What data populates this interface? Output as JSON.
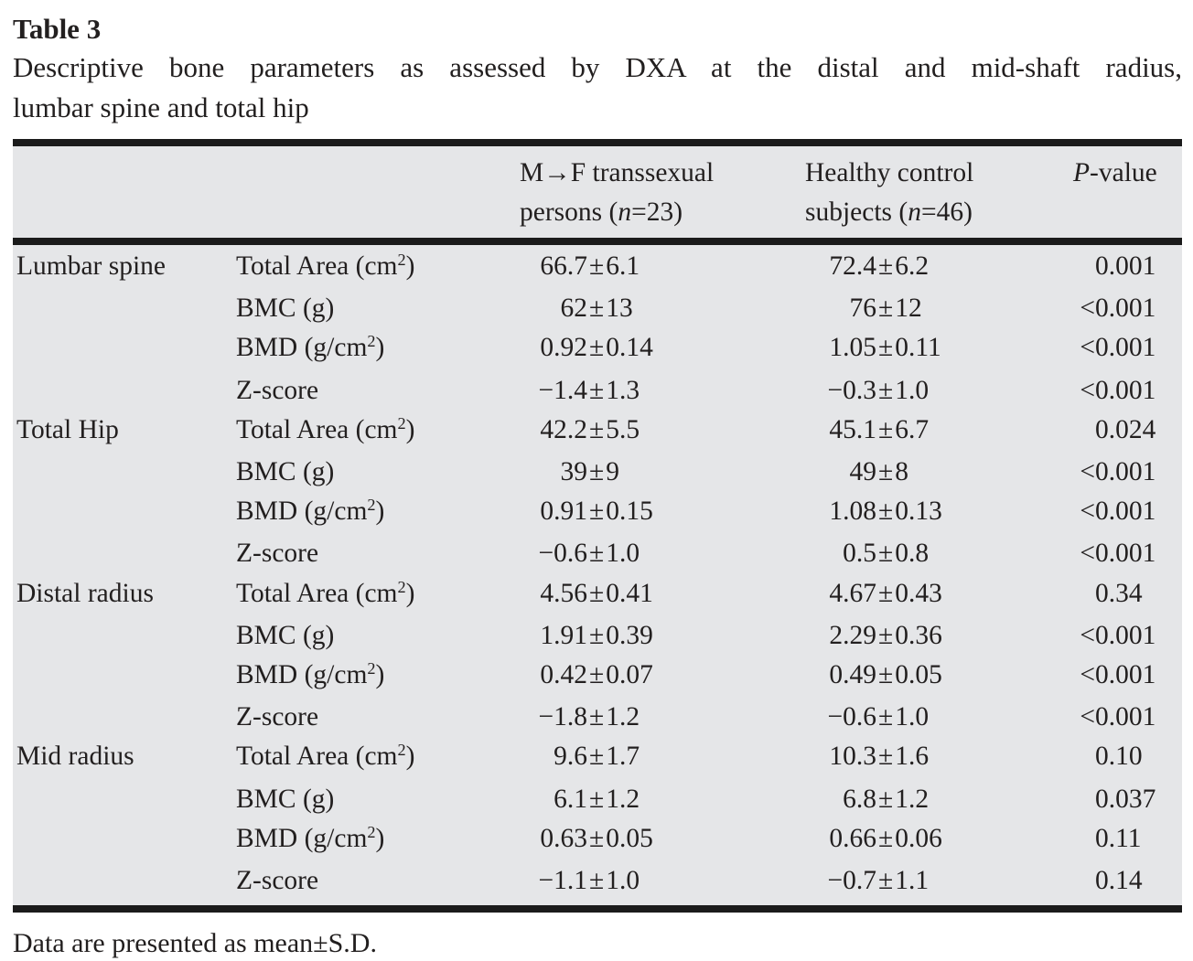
{
  "table_label": "Table 3",
  "caption_line1": "Descriptive bone parameters as assessed by DXA at the distal and mid-shaft radius,",
  "caption_line2": "lumbar spine and total hip",
  "footnote": "Data are presented as mean±S.D.",
  "pm_symbol": "±",
  "colors": {
    "table_bg": "#e5e6e8",
    "rule": "#1b1b1b",
    "text": "#221f1f",
    "page_bg": "#ffffff"
  },
  "header": {
    "group_col": "",
    "param_col": "",
    "col3_line1": "M→F transsexual",
    "col3_line2_pre": "persons (",
    "col3_line2_italic": "n",
    "col3_line2_post": "=23)",
    "col4_line1": "Healthy control",
    "col4_line2_pre": "subjects (",
    "col4_line2_italic": "n",
    "col4_line2_post": "=46)",
    "col5_italic": "P",
    "col5_post": "-value"
  },
  "groups": [
    {
      "name": "Lumbar spine",
      "rows": [
        {
          "param": {
            "pre": "Total Area (cm",
            "sup": "2",
            "post": ")"
          },
          "g1": {
            "mean": "66.7",
            "sd": "6.1"
          },
          "g2": {
            "mean": "72.4",
            "sd": "6.2"
          },
          "p": {
            "prefix": "",
            "value": "0.001"
          }
        },
        {
          "param": {
            "pre": "BMC (g)",
            "sup": "",
            "post": ""
          },
          "g1": {
            "mean": "62",
            "sd": "13"
          },
          "g2": {
            "mean": "76",
            "sd": "12"
          },
          "p": {
            "prefix": "<",
            "value": "0.001"
          }
        },
        {
          "param": {
            "pre": "BMD (g/cm",
            "sup": "2",
            "post": ")"
          },
          "g1": {
            "mean": "0.92",
            "sd": "0.14"
          },
          "g2": {
            "mean": "1.05",
            "sd": "0.11"
          },
          "p": {
            "prefix": "<",
            "value": "0.001"
          }
        },
        {
          "param": {
            "pre": "Z-score",
            "sup": "",
            "post": ""
          },
          "g1": {
            "mean": "−1.4",
            "sd": "1.3"
          },
          "g2": {
            "mean": "−0.3",
            "sd": "1.0"
          },
          "p": {
            "prefix": "<",
            "value": "0.001"
          }
        }
      ]
    },
    {
      "name": "Total Hip",
      "rows": [
        {
          "param": {
            "pre": "Total Area (cm",
            "sup": "2",
            "post": ")"
          },
          "g1": {
            "mean": "42.2",
            "sd": "5.5"
          },
          "g2": {
            "mean": "45.1",
            "sd": "6.7"
          },
          "p": {
            "prefix": "",
            "value": "0.024"
          }
        },
        {
          "param": {
            "pre": "BMC (g)",
            "sup": "",
            "post": ""
          },
          "g1": {
            "mean": "39",
            "sd": "9"
          },
          "g2": {
            "mean": "49",
            "sd": "8"
          },
          "p": {
            "prefix": "<",
            "value": "0.001"
          }
        },
        {
          "param": {
            "pre": "BMD (g/cm",
            "sup": "2",
            "post": ")"
          },
          "g1": {
            "mean": "0.91",
            "sd": "0.15"
          },
          "g2": {
            "mean": "1.08",
            "sd": "0.13"
          },
          "p": {
            "prefix": "<",
            "value": "0.001"
          }
        },
        {
          "param": {
            "pre": "Z-score",
            "sup": "",
            "post": ""
          },
          "g1": {
            "mean": "−0.6",
            "sd": "1.0"
          },
          "g2": {
            "mean": "0.5",
            "sd": "0.8"
          },
          "p": {
            "prefix": "<",
            "value": "0.001"
          }
        }
      ]
    },
    {
      "name": "Distal radius",
      "rows": [
        {
          "param": {
            "pre": "Total Area (cm",
            "sup": "2",
            "post": ")"
          },
          "g1": {
            "mean": "4.56",
            "sd": "0.41"
          },
          "g2": {
            "mean": "4.67",
            "sd": "0.43"
          },
          "p": {
            "prefix": "",
            "value": "0.34"
          }
        },
        {
          "param": {
            "pre": "BMC (g)",
            "sup": "",
            "post": ""
          },
          "g1": {
            "mean": "1.91",
            "sd": "0.39"
          },
          "g2": {
            "mean": "2.29",
            "sd": "0.36"
          },
          "p": {
            "prefix": "<",
            "value": "0.001"
          }
        },
        {
          "param": {
            "pre": "BMD (g/cm",
            "sup": "2",
            "post": ")"
          },
          "g1": {
            "mean": "0.42",
            "sd": "0.07"
          },
          "g2": {
            "mean": "0.49",
            "sd": "0.05"
          },
          "p": {
            "prefix": "<",
            "value": "0.001"
          }
        },
        {
          "param": {
            "pre": "Z-score",
            "sup": "",
            "post": ""
          },
          "g1": {
            "mean": "−1.8",
            "sd": "1.2"
          },
          "g2": {
            "mean": "−0.6",
            "sd": "1.0"
          },
          "p": {
            "prefix": "<",
            "value": "0.001"
          }
        }
      ]
    },
    {
      "name": "Mid radius",
      "rows": [
        {
          "param": {
            "pre": "Total Area (cm",
            "sup": "2",
            "post": ")"
          },
          "g1": {
            "mean": "9.6",
            "sd": "1.7"
          },
          "g2": {
            "mean": "10.3",
            "sd": "1.6"
          },
          "p": {
            "prefix": "",
            "value": "0.10"
          }
        },
        {
          "param": {
            "pre": "BMC (g)",
            "sup": "",
            "post": ""
          },
          "g1": {
            "mean": "6.1",
            "sd": "1.2"
          },
          "g2": {
            "mean": "6.8",
            "sd": "1.2"
          },
          "p": {
            "prefix": "",
            "value": "0.037"
          }
        },
        {
          "param": {
            "pre": "BMD (g/cm",
            "sup": "2",
            "post": ")"
          },
          "g1": {
            "mean": "0.63",
            "sd": "0.05"
          },
          "g2": {
            "mean": "0.66",
            "sd": "0.06"
          },
          "p": {
            "prefix": "",
            "value": "0.11"
          }
        },
        {
          "param": {
            "pre": "Z-score",
            "sup": "",
            "post": ""
          },
          "g1": {
            "mean": "−1.1",
            "sd": "1.0"
          },
          "g2": {
            "mean": "−0.7",
            "sd": "1.1"
          },
          "p": {
            "prefix": "",
            "value": "0.14"
          }
        }
      ]
    }
  ]
}
